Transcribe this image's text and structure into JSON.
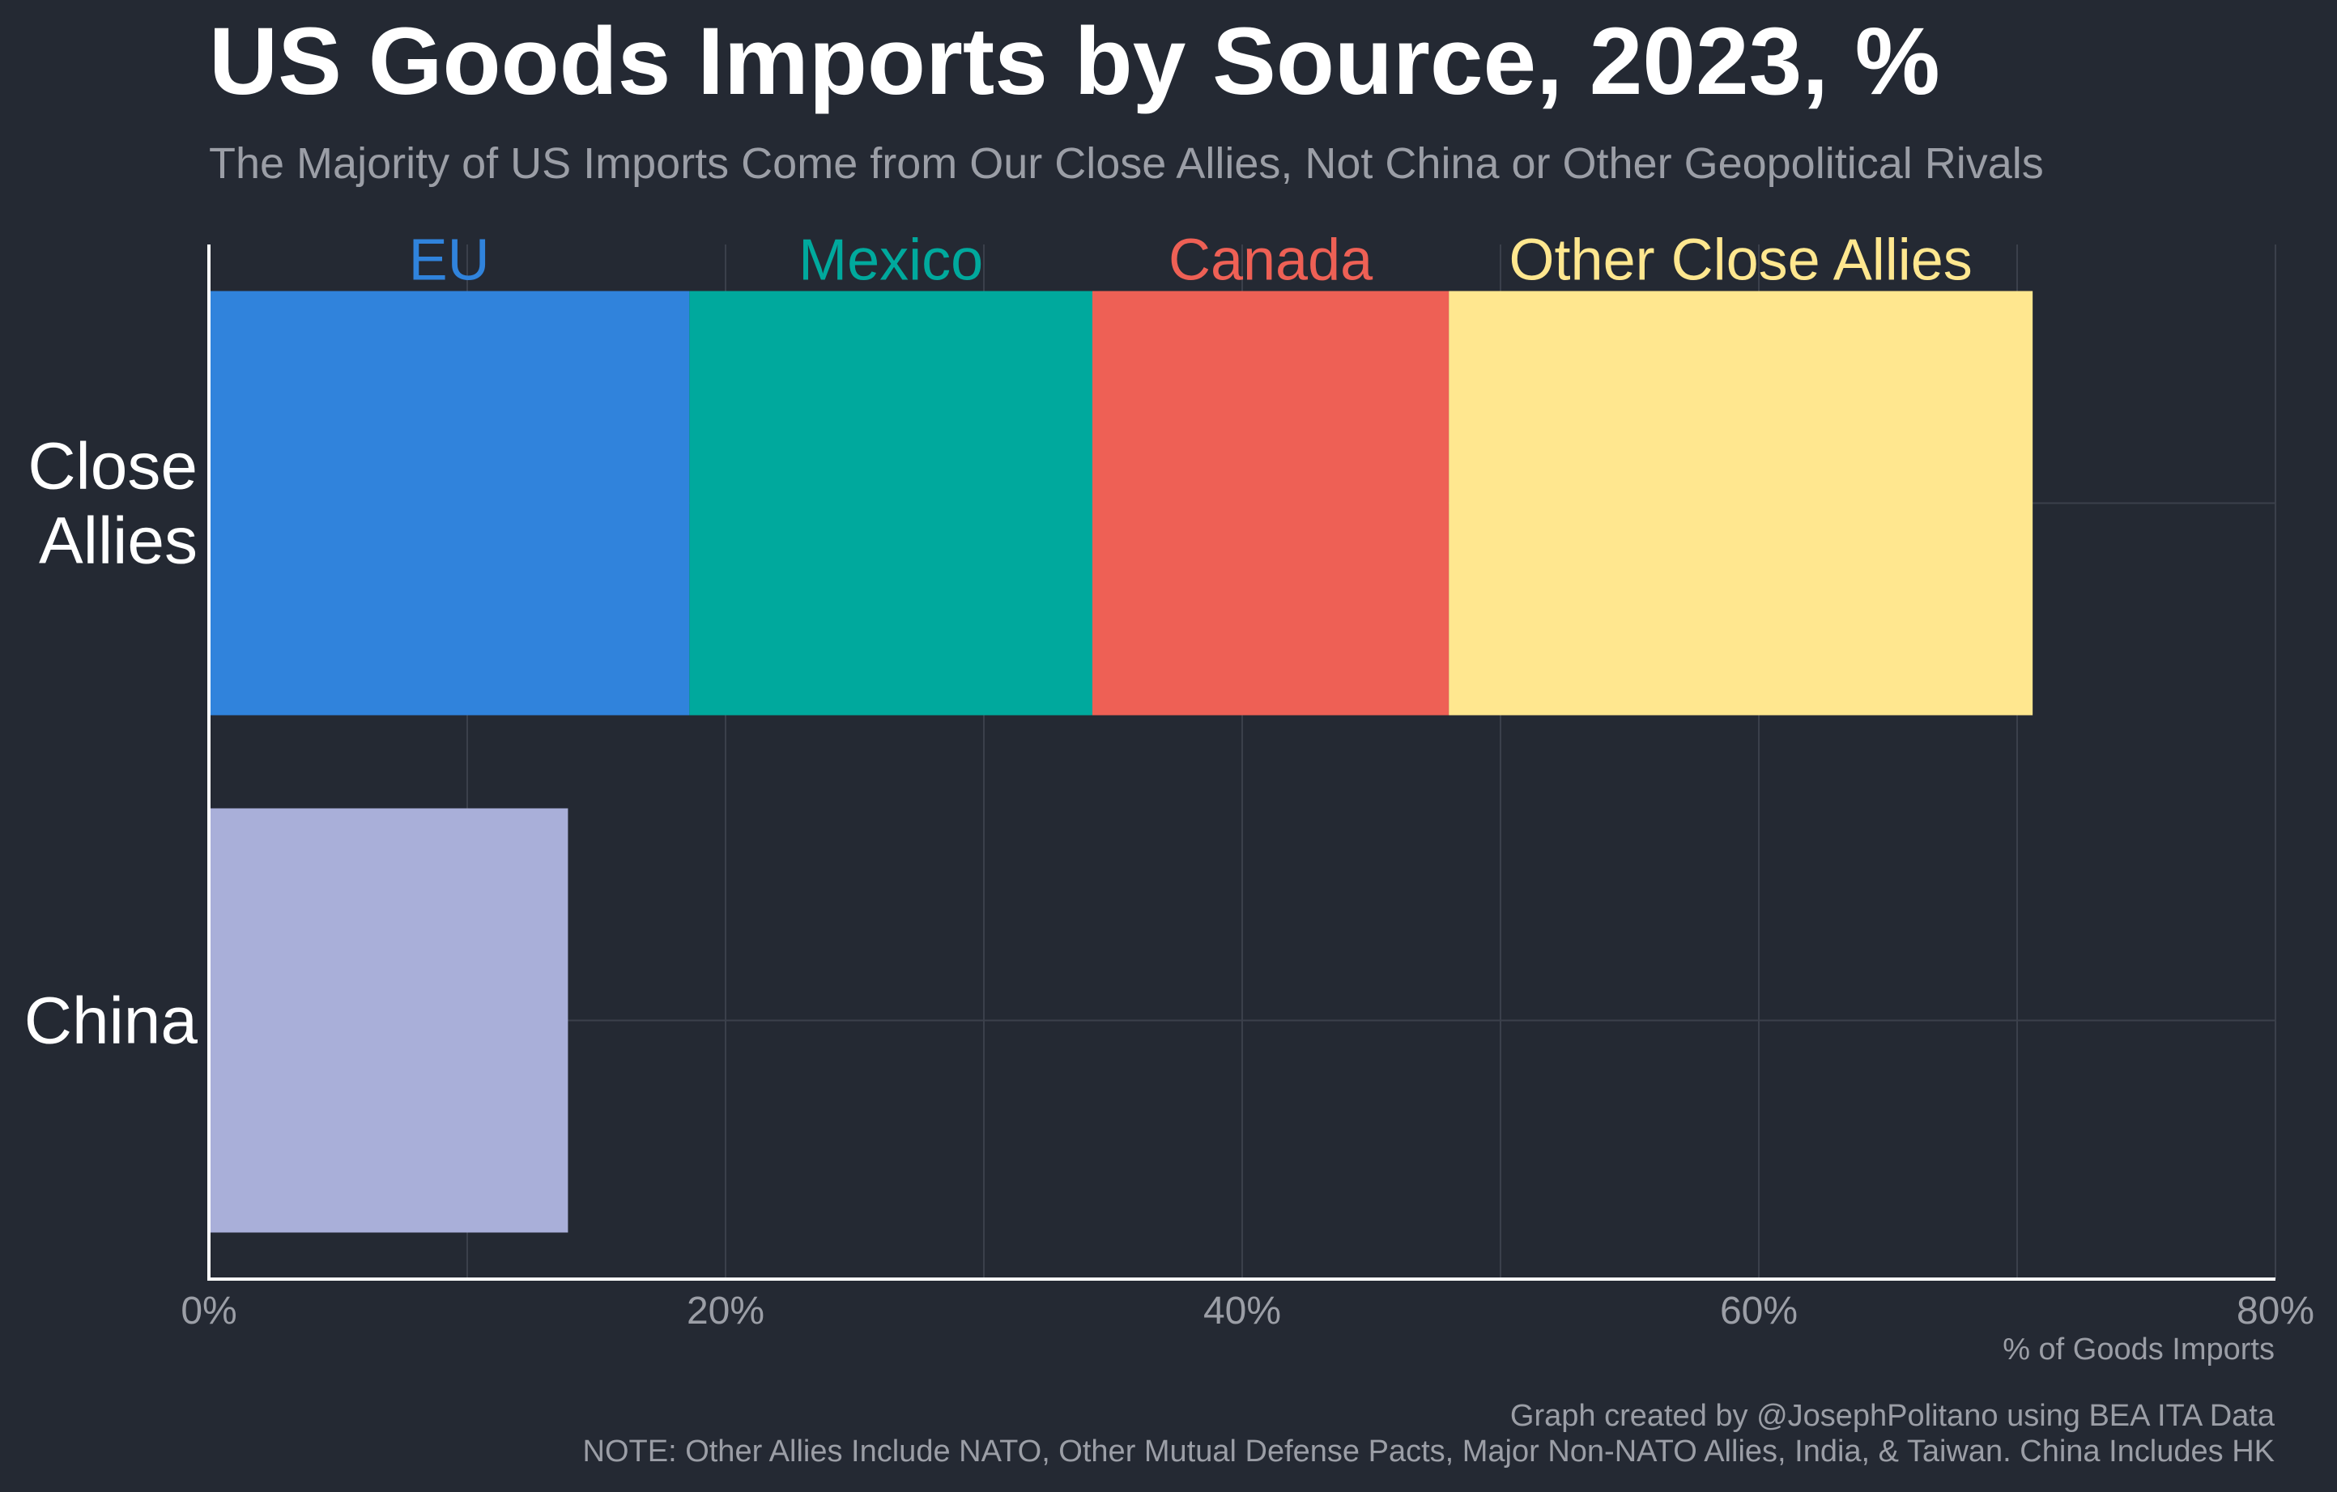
{
  "title": "US Goods Imports by Source, 2023, %",
  "subtitle": "The Majority of US Imports Come from Our Close Allies, Not China or Other Geopolitical Rivals",
  "footer": {
    "credit": "Graph created by @JosephPolitano using BEA ITA Data",
    "note": "NOTE: Other Allies Include NATO, Other Mutual Defense Pacts, Major Non-NATO Allies, India, & Taiwan. China Includes HK"
  },
  "colors": {
    "background": "#242933",
    "EU": "#3083dc",
    "Mexico": "#00a99d",
    "Canada": "#ee6055",
    "Other Close Allies": "#ffe78f",
    "China": "#a9afd9"
  },
  "chart_data": {
    "type": "bar",
    "orientation": "horizontal",
    "stacked": true,
    "categories": [
      "Close Allies",
      "China"
    ],
    "category_labels": [
      [
        "Close",
        "Allies"
      ],
      [
        "China"
      ]
    ],
    "series": [
      {
        "name": "EU",
        "values": [
          18.6,
          null
        ]
      },
      {
        "name": "Mexico",
        "values": [
          15.6,
          null
        ]
      },
      {
        "name": "Canada",
        "values": [
          13.8,
          null
        ]
      },
      {
        "name": "Other Close Allies",
        "values": [
          22.6,
          null
        ]
      },
      {
        "name": "",
        "values": [
          null,
          13.9
        ]
      }
    ],
    "xlabel": "% of Goods Imports",
    "ylabel": "",
    "xlim": [
      0,
      80
    ],
    "xticks": [
      0,
      20,
      40,
      60,
      80
    ],
    "xtick_labels": [
      "0%",
      "20%",
      "40%",
      "60%",
      "80%"
    ],
    "grid": true,
    "legend": "labels above Close Allies segments"
  }
}
